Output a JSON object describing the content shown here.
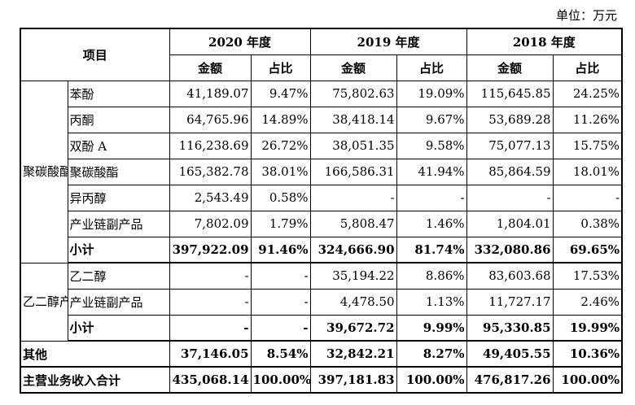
{
  "unit_label": "单位：万元",
  "header": {
    "item": "项目",
    "years": [
      "2020 年度",
      "2019 年度",
      "2018 年度"
    ],
    "amount": "金额",
    "ratio": "占比"
  },
  "groups": [
    {
      "category": "聚碳酸酯产业链",
      "rows": [
        {
          "label": "苯酚",
          "v": [
            "41,189.07",
            "9.47%",
            "75,802.63",
            "19.09%",
            "115,645.85",
            "24.25%"
          ]
        },
        {
          "label": "丙酮",
          "v": [
            "64,765.96",
            "14.89%",
            "38,418.14",
            "9.67%",
            "53,689.28",
            "11.26%"
          ]
        },
        {
          "label": "双酚 A",
          "v": [
            "116,238.69",
            "26.72%",
            "38,051.35",
            "9.58%",
            "75,077.13",
            "15.75%"
          ]
        },
        {
          "label": "聚碳酸酯",
          "v": [
            "165,382.78",
            "38.01%",
            "166,586.31",
            "41.94%",
            "85,864.59",
            "18.01%"
          ]
        },
        {
          "label": "异丙醇",
          "v": [
            "2,543.49",
            "0.58%",
            "-",
            "-",
            "-",
            "-"
          ]
        },
        {
          "label": "产业链副产品",
          "v": [
            "7,802.09",
            "1.79%",
            "5,808.47",
            "1.46%",
            "1,804.01",
            "0.38%"
          ]
        }
      ],
      "subtotal": {
        "label": "小计",
        "v": [
          "397,922.09",
          "91.46%",
          "324,666.90",
          "81.74%",
          "332,080.86",
          "69.65%"
        ]
      }
    },
    {
      "category": "乙二醇产业链",
      "rows": [
        {
          "label": "乙二醇",
          "v": [
            "-",
            "-",
            "35,194.22",
            "8.86%",
            "83,603.68",
            "17.53%"
          ]
        },
        {
          "label": "产业链副产品",
          "v": [
            "-",
            "-",
            "4,478.50",
            "1.13%",
            "11,727.17",
            "2.46%"
          ]
        }
      ],
      "subtotal": {
        "label": "小计",
        "v": [
          "-",
          "-",
          "39,672.72",
          "9.99%",
          "95,330.85",
          "19.99%"
        ]
      }
    }
  ],
  "other": {
    "label": "其他",
    "v": [
      "37,146.05",
      "8.54%",
      "32,842.21",
      "8.27%",
      "49,405.55",
      "10.36%"
    ]
  },
  "total": {
    "label": "主营业务收入合计",
    "v": [
      "435,068.14",
      "100.00%",
      "397,181.83",
      "100.00%",
      "476,817.26",
      "100.00%"
    ]
  }
}
